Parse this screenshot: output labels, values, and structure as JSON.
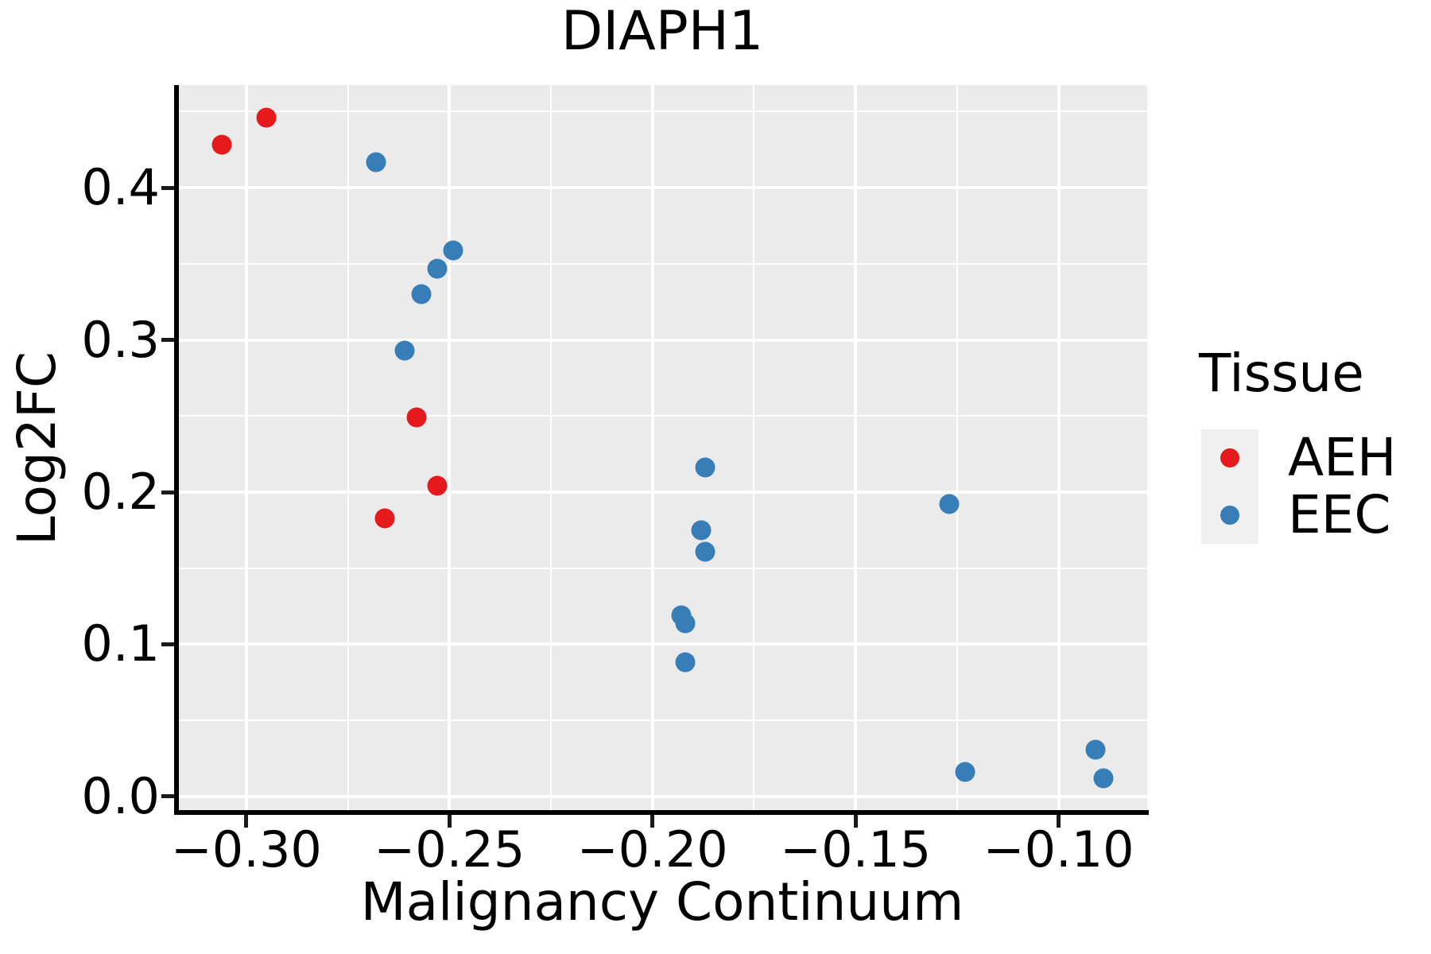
{
  "chart_data": {
    "type": "scatter",
    "title": "DIAPH1",
    "xlabel": "Malignancy Continuum",
    "ylabel": "Log2FC",
    "xlim": [
      -0.317,
      -0.0782
    ],
    "ylim": [
      -0.0089,
      0.4674
    ],
    "grid": true,
    "panel_bg": "#EBEBEB",
    "gridline_color": "#FFFFFF",
    "x_ticks": [
      {
        "value": -0.3,
        "label": "−0.30"
      },
      {
        "value": -0.25,
        "label": "−0.25"
      },
      {
        "value": -0.2,
        "label": "−0.20"
      },
      {
        "value": -0.15,
        "label": "−0.15"
      },
      {
        "value": -0.1,
        "label": "−0.10"
      }
    ],
    "y_ticks": [
      {
        "value": 0.0,
        "label": "0.0"
      },
      {
        "value": 0.1,
        "label": "0.1"
      },
      {
        "value": 0.2,
        "label": "0.2"
      },
      {
        "value": 0.3,
        "label": "0.3"
      },
      {
        "value": 0.4,
        "label": "0.4"
      }
    ],
    "x_minor_gridlines": [
      -0.275,
      -0.225,
      -0.175,
      -0.125
    ],
    "y_minor_gridlines": [
      0.05,
      0.15,
      0.25,
      0.35,
      0.45
    ],
    "legend_position": "right",
    "series": [
      {
        "name": "AEH",
        "color": "#E41A1C",
        "points": [
          [
            -0.306,
            0.428
          ],
          [
            -0.295,
            0.446
          ],
          [
            -0.266,
            0.183
          ],
          [
            -0.258,
            0.249
          ],
          [
            -0.253,
            0.204
          ]
        ]
      },
      {
        "name": "EEC",
        "color": "#377EB8",
        "points": [
          [
            -0.268,
            0.417
          ],
          [
            -0.261,
            0.293
          ],
          [
            -0.257,
            0.33
          ],
          [
            -0.253,
            0.347
          ],
          [
            -0.249,
            0.359
          ],
          [
            -0.193,
            0.119
          ],
          [
            -0.192,
            0.114
          ],
          [
            -0.192,
            0.088
          ],
          [
            -0.188,
            0.175
          ],
          [
            -0.187,
            0.216
          ],
          [
            -0.187,
            0.161
          ],
          [
            -0.127,
            0.192
          ],
          [
            -0.123,
            0.016
          ],
          [
            -0.091,
            0.031
          ],
          [
            -0.089,
            0.012
          ]
        ]
      }
    ]
  },
  "legend": {
    "title": "Tissue",
    "items": [
      {
        "label": "AEH",
        "color": "#E41A1C"
      },
      {
        "label": "EEC",
        "color": "#377EB8"
      }
    ]
  },
  "colors": {
    "axis_line": "#000000",
    "tick_mark": "#1a1a1a",
    "text": "#000000",
    "legend_key_bg": "#F0F0F0"
  }
}
